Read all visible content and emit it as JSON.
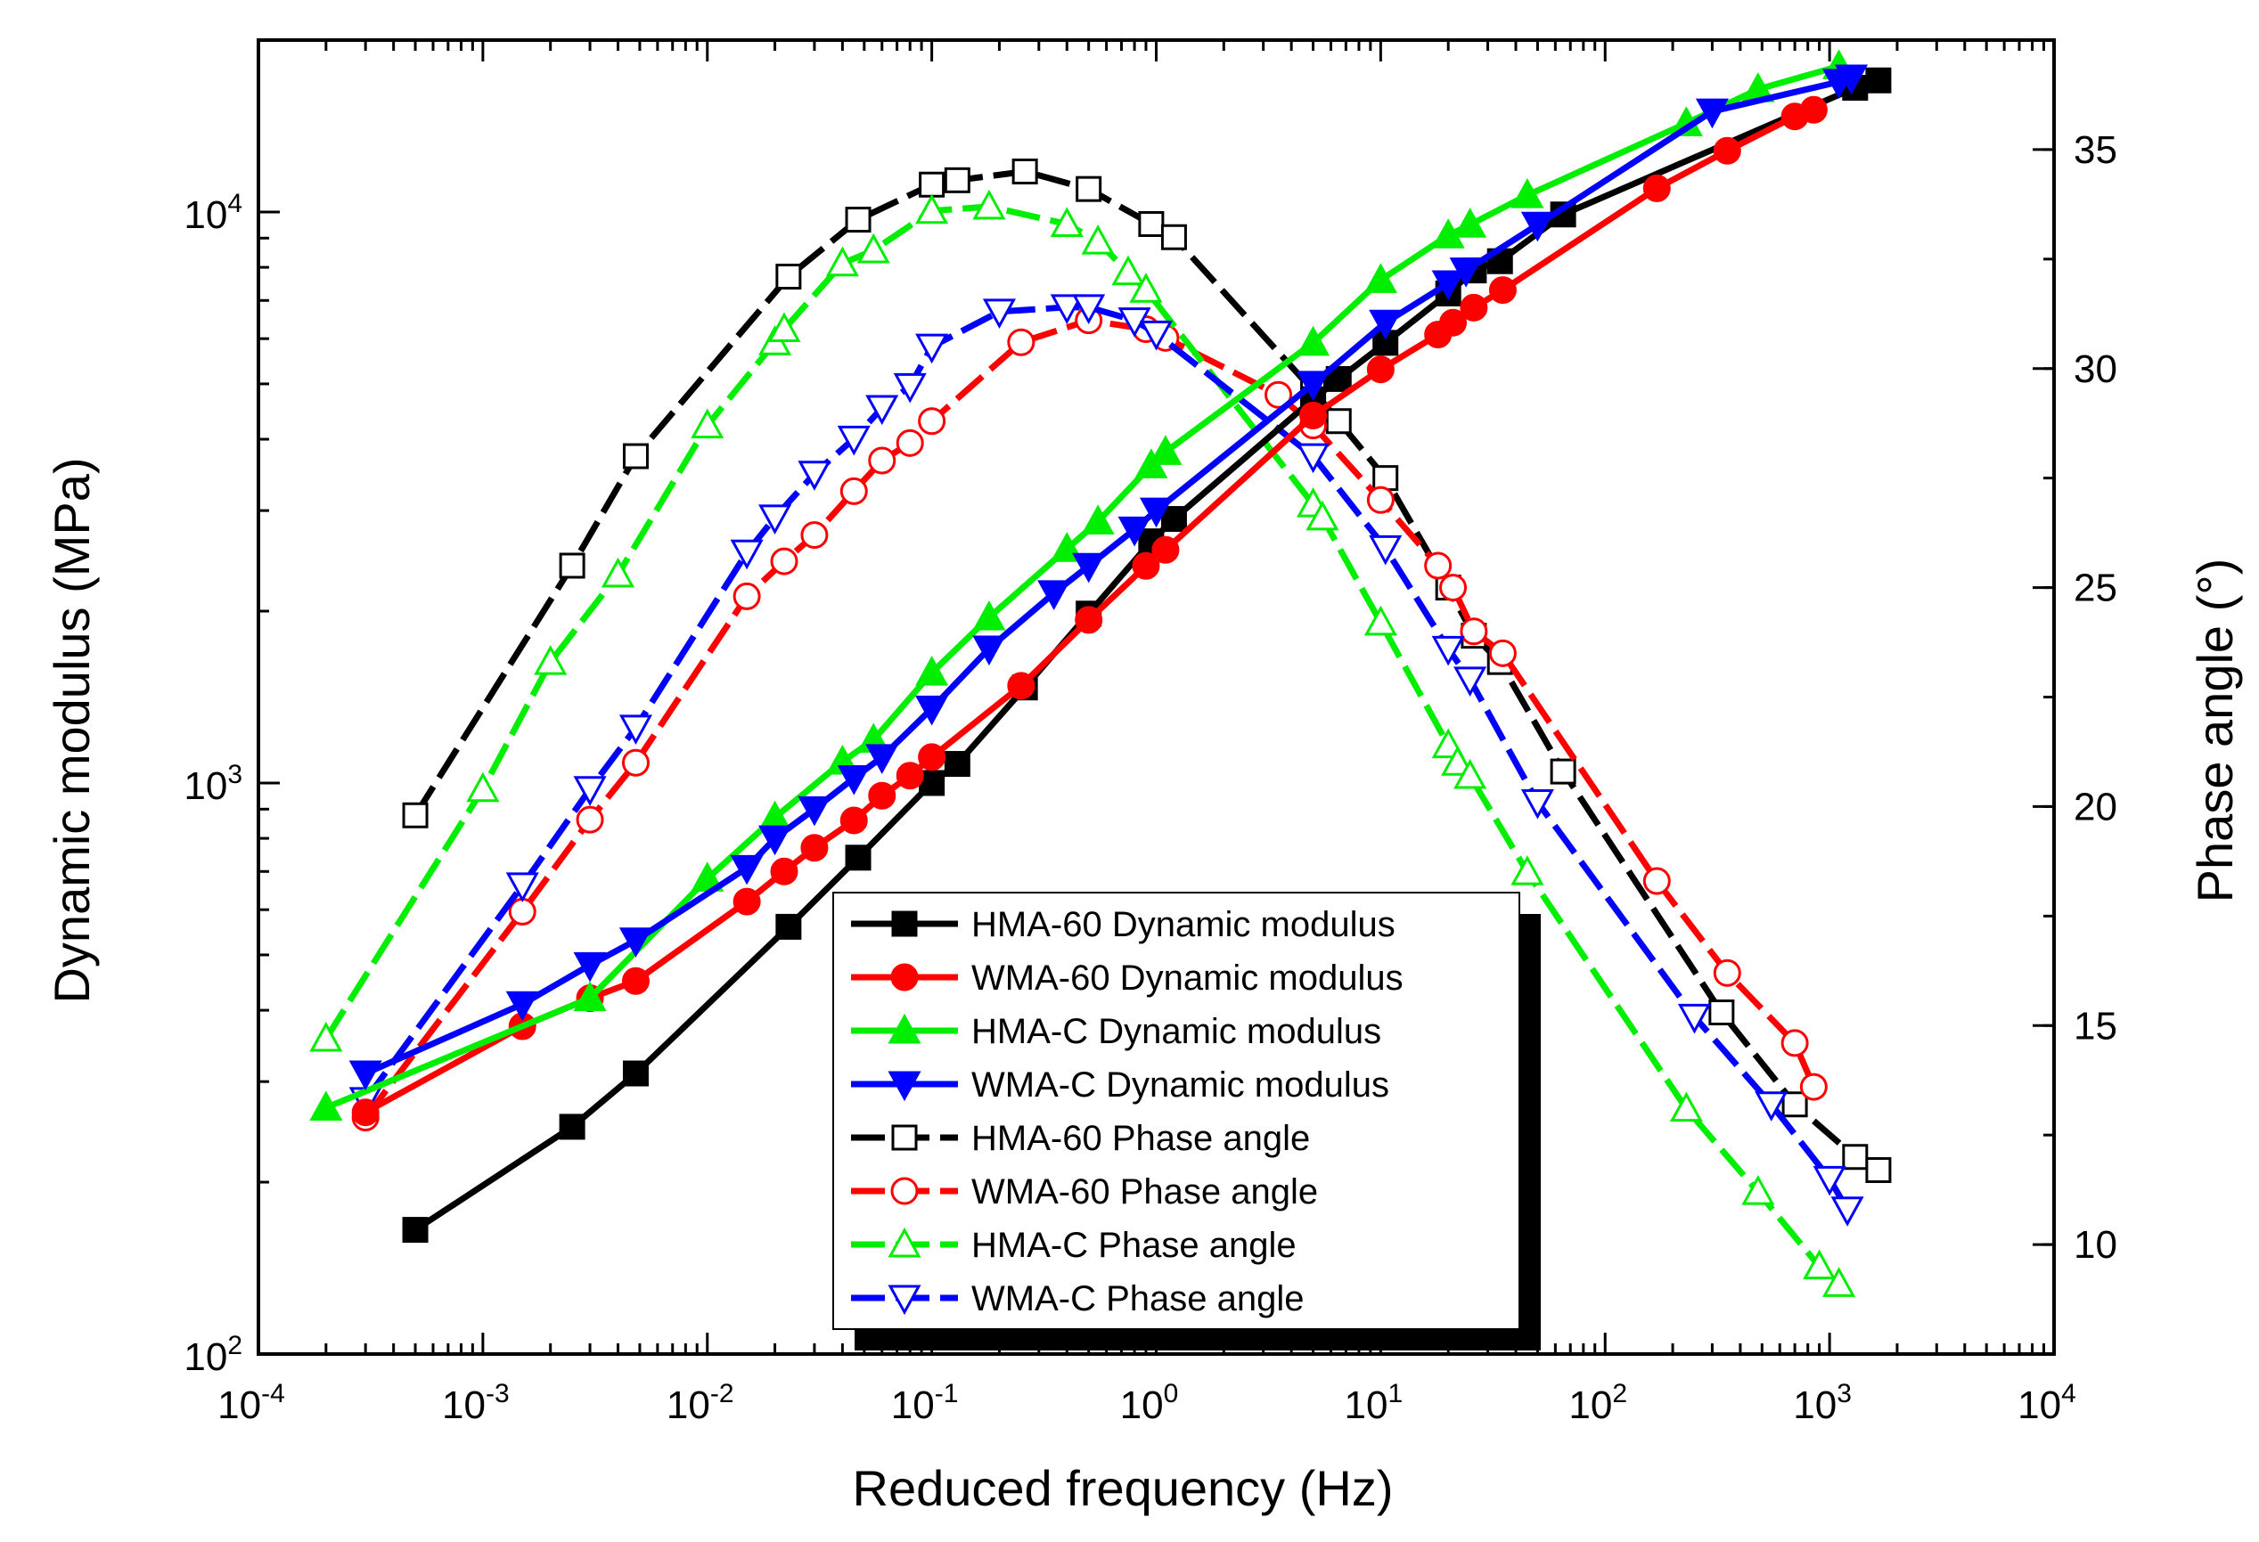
{
  "chart_data": {
    "type": "line",
    "title": "",
    "xlabel": "Reduced frequency (Hz)",
    "ylabel_left": "Dynamic modulus (MPa)",
    "ylabel_right": "Phase angle (°)",
    "x_scale": "log",
    "xlim": [
      0.0001,
      10000
    ],
    "ylim_left": [
      100,
      20000
    ],
    "y_left_scale": "log",
    "ylim_right": [
      7.5,
      37.5
    ],
    "x_ticks": [
      {
        "value": 0.0001,
        "base": "10",
        "exp": "-4"
      },
      {
        "value": 0.001,
        "base": "10",
        "exp": "-3"
      },
      {
        "value": 0.01,
        "base": "10",
        "exp": "-2"
      },
      {
        "value": 0.1,
        "base": "10",
        "exp": "-1"
      },
      {
        "value": 1,
        "base": "10",
        "exp": "0"
      },
      {
        "value": 10,
        "base": "10",
        "exp": "1"
      },
      {
        "value": 100,
        "base": "10",
        "exp": "2"
      },
      {
        "value": 1000,
        "base": "10",
        "exp": "3"
      },
      {
        "value": 10000,
        "base": "10",
        "exp": "4"
      }
    ],
    "y_left_ticks": [
      {
        "value": 100,
        "base": "10",
        "exp": "2"
      },
      {
        "value": 1000,
        "base": "10",
        "exp": "3"
      },
      {
        "value": 10000,
        "base": "10",
        "exp": "4"
      }
    ],
    "y_right_ticks": [
      10,
      15,
      20,
      25,
      30,
      35
    ],
    "legend_position": "center-bottom",
    "series": [
      {
        "name": "HMA-60 Dynamic modulus",
        "axis": "left",
        "color": "#000000",
        "marker": "square",
        "filled": true,
        "dashed": false,
        "x": [
          0.0005,
          0.0025,
          0.0048,
          0.023,
          0.047,
          0.1,
          0.13,
          0.26,
          0.5,
          0.95,
          1.2,
          5.0,
          6.5,
          10.5,
          20,
          26,
          34,
          65,
          1300,
          1650
        ],
        "y": [
          165,
          250,
          310,
          560,
          740,
          1000,
          1080,
          1470,
          1980,
          2650,
          2900,
          4700,
          5100,
          5900,
          7200,
          7900,
          8200,
          9900,
          16500,
          17000
        ]
      },
      {
        "name": "WMA-60 Dynamic modulus",
        "axis": "left",
        "color": "#ff0000",
        "marker": "circle",
        "filled": true,
        "dashed": false,
        "x": [
          0.0003,
          0.0015,
          0.003,
          0.0048,
          0.015,
          0.022,
          0.03,
          0.045,
          0.06,
          0.08,
          0.1,
          0.25,
          0.5,
          0.9,
          1.1,
          5.0,
          10,
          18,
          21,
          26,
          35,
          170,
          350,
          700,
          850
        ],
        "y": [
          265,
          375,
          420,
          450,
          620,
          700,
          770,
          860,
          950,
          1030,
          1110,
          1480,
          1930,
          2400,
          2560,
          4400,
          5300,
          6100,
          6400,
          6800,
          7300,
          11000,
          12800,
          14700,
          15100
        ]
      },
      {
        "name": "HMA-C Dynamic modulus",
        "axis": "left",
        "color": "#00ee00",
        "marker": "triangle-up",
        "filled": true,
        "dashed": false,
        "x": [
          0.0002,
          0.003,
          0.01,
          0.02,
          0.04,
          0.055,
          0.1,
          0.18,
          0.4,
          0.55,
          0.95,
          1.1,
          5.0,
          10,
          20,
          25,
          45,
          230,
          480,
          1100
        ],
        "y": [
          270,
          420,
          680,
          870,
          1090,
          1190,
          1560,
          1950,
          2570,
          2870,
          3600,
          3800,
          5900,
          7600,
          9100,
          9500,
          10700,
          14300,
          16400,
          18000
        ]
      },
      {
        "name": "WMA-C Dynamic modulus",
        "axis": "left",
        "color": "#0000ff",
        "marker": "triangle-down",
        "filled": true,
        "dashed": false,
        "x": [
          0.0003,
          0.0015,
          0.003,
          0.0048,
          0.015,
          0.02,
          0.03,
          0.045,
          0.06,
          0.1,
          0.18,
          0.35,
          0.5,
          0.8,
          1.0,
          5.0,
          10.5,
          20,
          24,
          50,
          300,
          1100,
          1250
        ],
        "y": [
          310,
          410,
          480,
          530,
          710,
          800,
          900,
          1020,
          1110,
          1350,
          1720,
          2150,
          2400,
          2780,
          3000,
          5000,
          6400,
          7500,
          7900,
          9500,
          15000,
          16900,
          17200
        ]
      },
      {
        "name": "HMA-60 Phase angle",
        "axis": "right",
        "color": "#000000",
        "marker": "square",
        "filled": false,
        "dashed": true,
        "x": [
          0.0005,
          0.0025,
          0.0048,
          0.023,
          0.047,
          0.1,
          0.13,
          0.26,
          0.5,
          0.95,
          1.2,
          5.0,
          6.5,
          10.5,
          20,
          26,
          34,
          65,
          330,
          700,
          1300,
          1650
        ],
        "y": [
          19.8,
          25.5,
          28.0,
          32.1,
          33.4,
          34.2,
          34.3,
          34.5,
          34.1,
          33.3,
          33.0,
          29.5,
          28.8,
          27.5,
          25.0,
          23.9,
          23.3,
          20.8,
          15.3,
          13.2,
          12.0,
          11.7
        ]
      },
      {
        "name": "WMA-60 Phase angle",
        "axis": "right",
        "color": "#ff0000",
        "marker": "circle",
        "filled": false,
        "dashed": true,
        "x": [
          0.0003,
          0.0015,
          0.003,
          0.0048,
          0.015,
          0.022,
          0.03,
          0.045,
          0.06,
          0.08,
          0.1,
          0.25,
          0.5,
          0.9,
          1.1,
          3.5,
          5.0,
          10,
          18,
          21,
          26,
          35,
          170,
          350,
          700,
          850
        ],
        "y": [
          12.9,
          17.6,
          19.7,
          21.0,
          24.8,
          25.6,
          26.2,
          27.2,
          27.9,
          28.3,
          28.8,
          30.6,
          31.1,
          30.9,
          30.7,
          29.4,
          28.7,
          27.0,
          25.5,
          25.0,
          24.0,
          23.5,
          18.3,
          16.2,
          14.6,
          13.6
        ]
      },
      {
        "name": "HMA-C Phase angle",
        "axis": "right",
        "color": "#00ee00",
        "marker": "triangle-up",
        "filled": false,
        "dashed": true,
        "x": [
          0.0002,
          0.001,
          0.002,
          0.004,
          0.01,
          0.02,
          0.022,
          0.04,
          0.055,
          0.1,
          0.18,
          0.4,
          0.55,
          0.75,
          0.9,
          5.0,
          5.5,
          10,
          20,
          22,
          25,
          45,
          230,
          480,
          900,
          1100
        ],
        "y": [
          14.7,
          20.4,
          23.3,
          25.3,
          28.7,
          30.6,
          30.9,
          32.4,
          32.7,
          33.6,
          33.7,
          33.3,
          32.9,
          32.2,
          31.8,
          26.9,
          26.6,
          24.2,
          21.4,
          21.0,
          20.7,
          18.5,
          13.1,
          11.2,
          9.5,
          9.1
        ]
      },
      {
        "name": "WMA-C Phase angle",
        "axis": "right",
        "color": "#0000ff",
        "marker": "triangle-down",
        "filled": false,
        "dashed": true,
        "x": [
          0.0003,
          0.0015,
          0.003,
          0.0048,
          0.015,
          0.02,
          0.03,
          0.045,
          0.06,
          0.08,
          0.1,
          0.2,
          0.4,
          0.5,
          0.8,
          1.0,
          5.0,
          10.5,
          20,
          25,
          50,
          250,
          550,
          1000,
          1200
        ],
        "y": [
          13.3,
          18.2,
          20.4,
          21.8,
          25.8,
          26.6,
          27.6,
          28.4,
          29.1,
          29.6,
          30.5,
          31.3,
          31.4,
          31.4,
          31.1,
          30.8,
          28.0,
          25.9,
          23.6,
          22.9,
          20.1,
          15.2,
          13.2,
          11.5,
          10.8
        ]
      }
    ]
  }
}
